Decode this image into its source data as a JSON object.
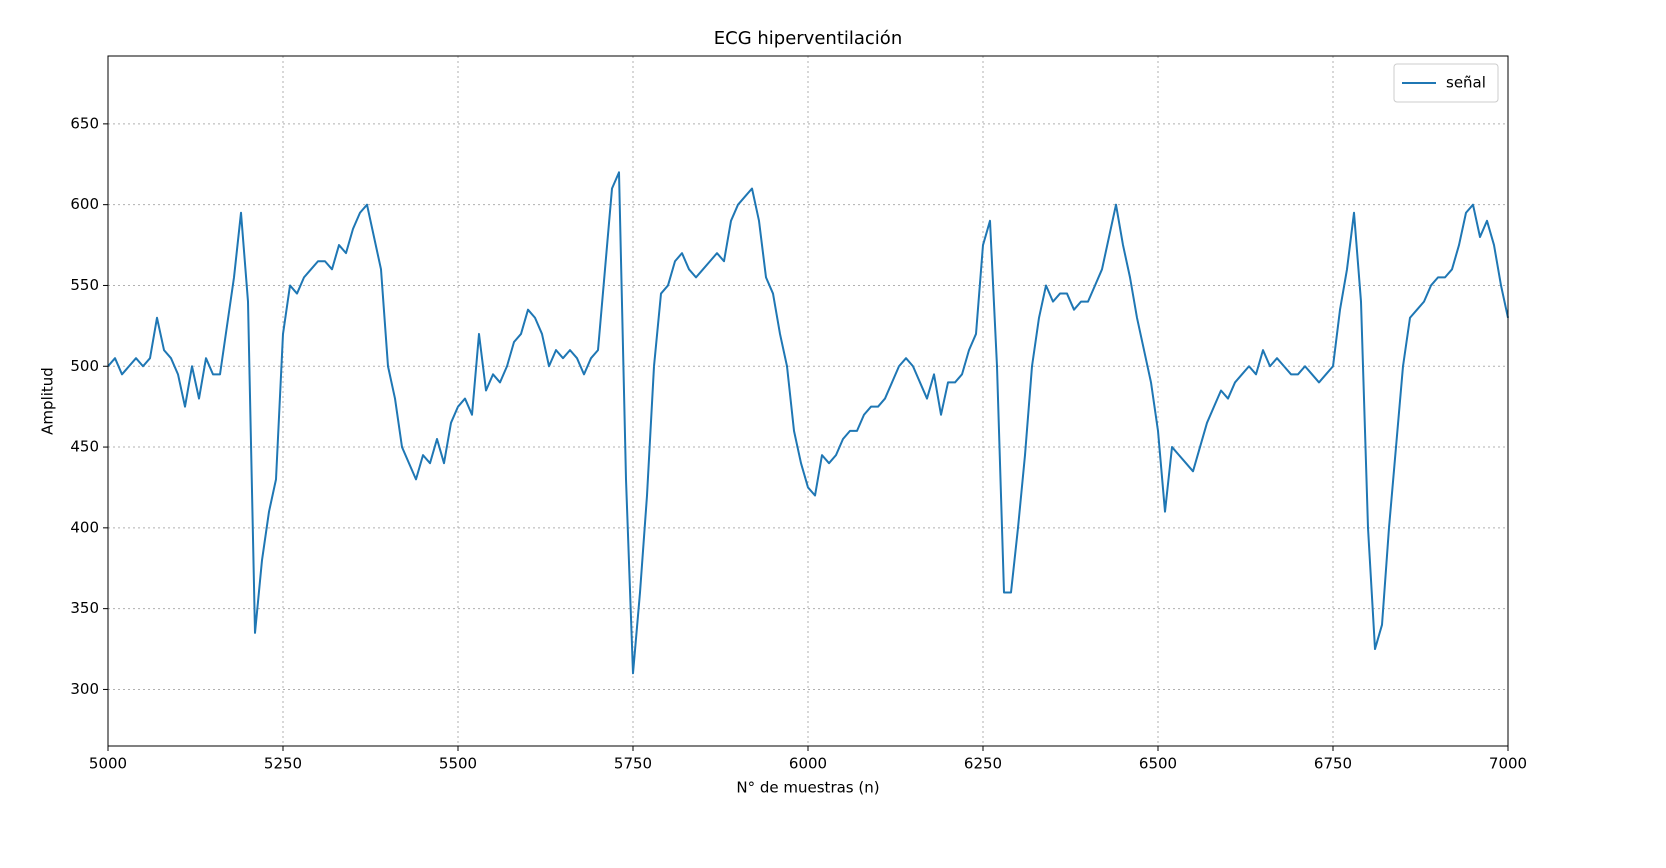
{
  "chart_data": {
    "type": "line",
    "title": "ECG hiperventilación",
    "xlabel": "N° de muestras (n)",
    "ylabel": "Amplitud",
    "x": [
      5000,
      5010,
      5020,
      5030,
      5040,
      5050,
      5060,
      5070,
      5080,
      5090,
      5100,
      5110,
      5120,
      5130,
      5140,
      5150,
      5160,
      5170,
      5180,
      5190,
      5200,
      5210,
      5220,
      5230,
      5240,
      5250,
      5260,
      5270,
      5280,
      5290,
      5300,
      5310,
      5320,
      5330,
      5340,
      5350,
      5360,
      5370,
      5380,
      5390,
      5400,
      5410,
      5420,
      5430,
      5440,
      5450,
      5460,
      5470,
      5480,
      5490,
      5500,
      5510,
      5520,
      5530,
      5540,
      5550,
      5560,
      5570,
      5580,
      5590,
      5600,
      5610,
      5620,
      5630,
      5640,
      5650,
      5660,
      5670,
      5680,
      5690,
      5700,
      5710,
      5720,
      5730,
      5740,
      5750,
      5760,
      5770,
      5780,
      5790,
      5800,
      5810,
      5820,
      5830,
      5840,
      5850,
      5860,
      5870,
      5880,
      5890,
      5900,
      5910,
      5920,
      5930,
      5940,
      5950,
      5960,
      5970,
      5980,
      5990,
      6000,
      6010,
      6020,
      6030,
      6040,
      6050,
      6060,
      6070,
      6080,
      6090,
      6100,
      6110,
      6120,
      6130,
      6140,
      6150,
      6160,
      6170,
      6180,
      6190,
      6200,
      6210,
      6220,
      6230,
      6240,
      6250,
      6260,
      6270,
      6280,
      6290,
      6300,
      6310,
      6320,
      6330,
      6340,
      6350,
      6360,
      6370,
      6380,
      6390,
      6400,
      6410,
      6420,
      6430,
      6440,
      6450,
      6460,
      6470,
      6480,
      6490,
      6500,
      6510,
      6520,
      6530,
      6540,
      6550,
      6560,
      6570,
      6580,
      6590,
      6600,
      6610,
      6620,
      6630,
      6640,
      6650,
      6660,
      6670,
      6680,
      6690,
      6700,
      6710,
      6720,
      6730,
      6740,
      6750,
      6760,
      6770,
      6780,
      6790,
      6800,
      6810,
      6820,
      6830,
      6840,
      6850,
      6860,
      6870,
      6880,
      6890,
      6900,
      6910,
      6920,
      6930,
      6940,
      6950,
      6960,
      6970,
      6980,
      6990,
      7000
    ],
    "series": [
      {
        "name": "señal",
        "color": "#1f77b4",
        "values": [
          500,
          505,
          495,
          500,
          505,
          500,
          505,
          530,
          510,
          505,
          495,
          475,
          500,
          480,
          505,
          495,
          495,
          525,
          555,
          595,
          540,
          335,
          380,
          410,
          430,
          520,
          550,
          545,
          555,
          560,
          565,
          565,
          560,
          575,
          570,
          585,
          595,
          600,
          580,
          560,
          500,
          480,
          450,
          440,
          430,
          445,
          440,
          455,
          440,
          465,
          475,
          480,
          470,
          520,
          485,
          495,
          490,
          500,
          515,
          520,
          535,
          530,
          520,
          500,
          510,
          505,
          510,
          505,
          495,
          505,
          510,
          560,
          610,
          620,
          430,
          310,
          360,
          420,
          500,
          545,
          550,
          565,
          570,
          560,
          555,
          560,
          565,
          570,
          565,
          590,
          600,
          605,
          610,
          590,
          555,
          545,
          520,
          500,
          460,
          440,
          425,
          420,
          445,
          440,
          445,
          455,
          460,
          460,
          470,
          475,
          475,
          480,
          490,
          500,
          505,
          500,
          490,
          480,
          495,
          470,
          490,
          490,
          495,
          510,
          520,
          575,
          590,
          500,
          360,
          360,
          400,
          445,
          500,
          530,
          550,
          540,
          545,
          545,
          535,
          540,
          540,
          550,
          560,
          580,
          600,
          575,
          555,
          530,
          510,
          490,
          460,
          410,
          450,
          445,
          440,
          435,
          450,
          465,
          475,
          485,
          480,
          490,
          495,
          500,
          495,
          510,
          500,
          505,
          500,
          495,
          495,
          500,
          495,
          490,
          495,
          500,
          535,
          560,
          595,
          540,
          400,
          325,
          340,
          400,
          450,
          500,
          530,
          535,
          540,
          550,
          555,
          555,
          560,
          575,
          595,
          600,
          580,
          590,
          575,
          550,
          530
        ]
      }
    ],
    "xlim": [
      5000,
      7000
    ],
    "xticks": [
      5000,
      5250,
      5500,
      5750,
      6000,
      6250,
      6500,
      6750,
      7000
    ],
    "ylim": [
      265,
      692
    ],
    "yticks": [
      300,
      350,
      400,
      450,
      500,
      550,
      600,
      650
    ],
    "grid": true,
    "legend": "upper right"
  }
}
